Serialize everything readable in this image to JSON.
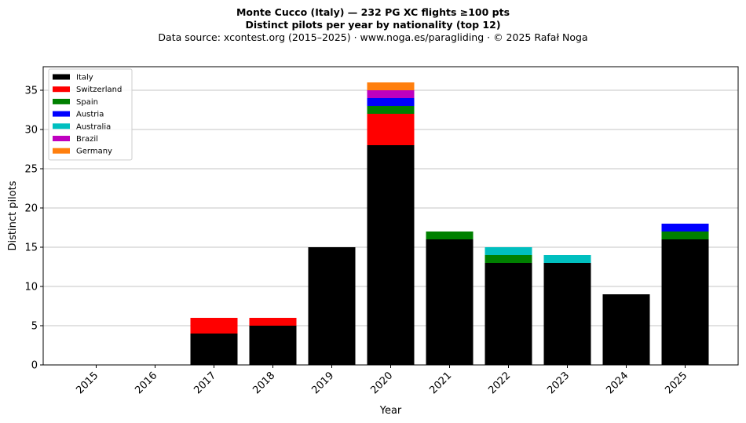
{
  "titles": {
    "line1": "Monte Cucco (Italy)  —  232 PG XC flights ≥100 pts",
    "line2": "Distinct pilots per year by nationality (top 12)",
    "line3": "Data source: xcontest.org (2015–2025)  ·  www.noga.es/paragliding  ·  © 2025 Rafał Noga"
  },
  "chart_data": {
    "type": "bar",
    "stacked": true,
    "categories": [
      "2015",
      "2016",
      "2017",
      "2018",
      "2019",
      "2020",
      "2021",
      "2022",
      "2023",
      "2024",
      "2025"
    ],
    "series": [
      {
        "name": "Italy",
        "color": "#000000",
        "values": [
          0,
          0,
          4,
          5,
          15,
          28,
          16,
          13,
          13,
          9,
          16
        ]
      },
      {
        "name": "Switzerland",
        "color": "#ff0000",
        "values": [
          0,
          0,
          2,
          1,
          0,
          4,
          0,
          0,
          0,
          0,
          0
        ]
      },
      {
        "name": "Spain",
        "color": "#008000",
        "values": [
          0,
          0,
          0,
          0,
          0,
          1,
          1,
          1,
          0,
          0,
          1
        ]
      },
      {
        "name": "Austria",
        "color": "#0000ff",
        "values": [
          0,
          0,
          0,
          0,
          0,
          1,
          0,
          0,
          0,
          0,
          1
        ]
      },
      {
        "name": "Australia",
        "color": "#00bfbf",
        "values": [
          0,
          0,
          0,
          0,
          0,
          0,
          0,
          1,
          1,
          0,
          0
        ]
      },
      {
        "name": "Brazil",
        "color": "#bf00bf",
        "values": [
          0,
          0,
          0,
          0,
          0,
          1,
          0,
          0,
          0,
          0,
          0
        ]
      },
      {
        "name": "Germany",
        "color": "#ff7f0e",
        "values": [
          0,
          0,
          0,
          0,
          0,
          1,
          0,
          0,
          0,
          0,
          0
        ]
      }
    ],
    "xlabel": "Year",
    "ylabel": "Distinct pilots",
    "ylim": [
      0,
      38
    ],
    "yticks": [
      0,
      5,
      10,
      15,
      20,
      25,
      30,
      35
    ],
    "grid": "horizontal",
    "legend_position": "top-left"
  }
}
